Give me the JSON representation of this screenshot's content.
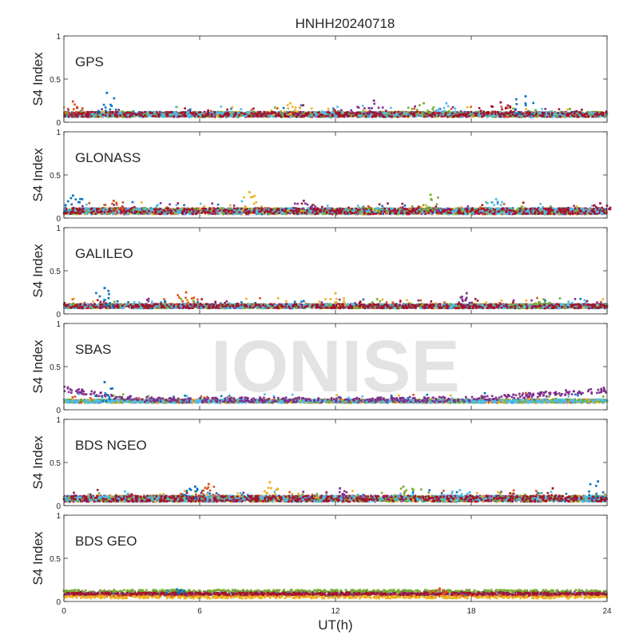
{
  "figure": {
    "title": "HNHH20240718",
    "xlabel": "UT(h)",
    "watermark": "IONISE"
  },
  "palette": [
    "#0072BD",
    "#D95319",
    "#EDB120",
    "#7E2F8E",
    "#77AC30",
    "#4DBEEE",
    "#A2142F"
  ],
  "chart_data": [
    {
      "type": "scatter",
      "panel_label": "GPS",
      "ylabel": "S4 Index",
      "xlim": [
        0,
        24
      ],
      "ylim": [
        0,
        1
      ],
      "xticks": [
        0,
        6,
        12,
        18,
        24
      ],
      "yticks": [
        0,
        0.5,
        1
      ],
      "ytick_labels": [
        "0",
        "0.5",
        "1"
      ],
      "grid": false,
      "baseline": 0.09,
      "spread": 0.03,
      "series_colors": [
        0,
        1,
        2,
        3,
        4,
        5,
        6
      ],
      "peaks": [
        {
          "x": 1.9,
          "y": 0.34
        },
        {
          "x": 0.4,
          "y": 0.24
        },
        {
          "x": 10.0,
          "y": 0.22
        },
        {
          "x": 13.7,
          "y": 0.25
        },
        {
          "x": 15.9,
          "y": 0.22
        },
        {
          "x": 16.9,
          "y": 0.22
        },
        {
          "x": 19.3,
          "y": 0.23
        },
        {
          "x": 20.4,
          "y": 0.3
        }
      ]
    },
    {
      "type": "scatter",
      "panel_label": "GLONASS",
      "ylabel": "S4 Index",
      "xlim": [
        0,
        24
      ],
      "ylim": [
        0,
        1
      ],
      "xticks": [
        0,
        6,
        12,
        18,
        24
      ],
      "yticks": [
        0,
        0.5,
        1
      ],
      "ytick_labels": [
        "0",
        "0.5",
        "1"
      ],
      "grid": false,
      "baseline": 0.08,
      "spread": 0.035,
      "series_colors": [
        0,
        1,
        2,
        3,
        4,
        5,
        6
      ],
      "peaks": [
        {
          "x": 0.4,
          "y": 0.26
        },
        {
          "x": 2.2,
          "y": 0.2
        },
        {
          "x": 8.2,
          "y": 0.3
        },
        {
          "x": 10.6,
          "y": 0.2
        },
        {
          "x": 16.2,
          "y": 0.27
        },
        {
          "x": 19.1,
          "y": 0.22
        },
        {
          "x": 23.7,
          "y": 0.17
        }
      ]
    },
    {
      "type": "scatter",
      "panel_label": "GALILEO",
      "ylabel": "S4 Index",
      "xlim": [
        0,
        24
      ],
      "ylim": [
        0,
        1
      ],
      "xticks": [
        0,
        6,
        12,
        18,
        24
      ],
      "yticks": [
        0,
        0.5,
        1
      ],
      "ytick_labels": [
        "0",
        "0.5",
        "1"
      ],
      "grid": false,
      "baseline": 0.09,
      "spread": 0.025,
      "series_colors": [
        0,
        1,
        2,
        3,
        4,
        5,
        6
      ],
      "peaks": [
        {
          "x": 1.8,
          "y": 0.3
        },
        {
          "x": 5.4,
          "y": 0.25
        },
        {
          "x": 12.0,
          "y": 0.24
        },
        {
          "x": 17.8,
          "y": 0.24
        },
        {
          "x": 21.2,
          "y": 0.17
        }
      ]
    },
    {
      "type": "scatter",
      "panel_label": "SBAS",
      "ylabel": "S4 Index",
      "xlim": [
        0,
        24
      ],
      "ylim": [
        0,
        1
      ],
      "xticks": [
        0,
        6,
        12,
        18,
        24
      ],
      "yticks": [
        0,
        0.5,
        1
      ],
      "ytick_labels": [
        "0",
        "0.5",
        "1"
      ],
      "grid": false,
      "baseline": 0.1,
      "spread": 0.02,
      "series_colors": [
        0,
        1,
        2,
        4,
        5
      ],
      "trend_series": {
        "color": 3,
        "values_by_hour": [
          {
            "x": 0,
            "y": 0.24
          },
          {
            "x": 2,
            "y": 0.16
          },
          {
            "x": 4,
            "y": 0.11
          },
          {
            "x": 18,
            "y": 0.12
          },
          {
            "x": 24,
            "y": 0.23
          }
        ]
      },
      "peaks": [
        {
          "x": 1.8,
          "y": 0.32
        }
      ]
    },
    {
      "type": "scatter",
      "panel_label": "BDS NGEO",
      "ylabel": "S4 Index",
      "xlim": [
        0,
        24
      ],
      "ylim": [
        0,
        1
      ],
      "xticks": [
        0,
        6,
        12,
        18,
        24
      ],
      "yticks": [
        0,
        0.5,
        1
      ],
      "ytick_labels": [
        "0",
        "0.5",
        "1"
      ],
      "grid": false,
      "baseline": 0.08,
      "spread": 0.035,
      "series_colors": [
        0,
        1,
        2,
        3,
        4,
        5,
        6
      ],
      "peaks": [
        {
          "x": 5.8,
          "y": 0.22
        },
        {
          "x": 6.4,
          "y": 0.25
        },
        {
          "x": 9.1,
          "y": 0.27
        },
        {
          "x": 12.2,
          "y": 0.2
        },
        {
          "x": 15.0,
          "y": 0.22
        },
        {
          "x": 17.5,
          "y": 0.18
        },
        {
          "x": 21.6,
          "y": 0.2
        },
        {
          "x": 23.6,
          "y": 0.28
        }
      ]
    },
    {
      "type": "scatter",
      "panel_label": "BDS GEO",
      "ylabel": "S4 Index",
      "xlim": [
        0,
        24
      ],
      "ylim": [
        0,
        1
      ],
      "xticks": [
        0,
        6,
        12,
        18,
        24
      ],
      "yticks": [
        0,
        0.5,
        1
      ],
      "ytick_labels": [
        "0",
        "0.5",
        "1"
      ],
      "xtick_labels": [
        "0",
        "6",
        "12",
        "18",
        "24"
      ],
      "grid": false,
      "baseline": 0.09,
      "spread": 0.015,
      "series_colors": [
        0,
        1,
        2,
        3,
        4,
        6
      ],
      "geo_levels": [
        {
          "color": 4,
          "y": 0.12
        },
        {
          "color": 3,
          "y": 0.1
        },
        {
          "color": 6,
          "y": 0.09
        },
        {
          "color": 0,
          "y": 0.08
        },
        {
          "color": 1,
          "y": 0.07
        },
        {
          "color": 2,
          "y": 0.05
        }
      ],
      "peaks": [
        {
          "x": 5.0,
          "y": 0.14
        },
        {
          "x": 16.6,
          "y": 0.15
        }
      ]
    }
  ]
}
